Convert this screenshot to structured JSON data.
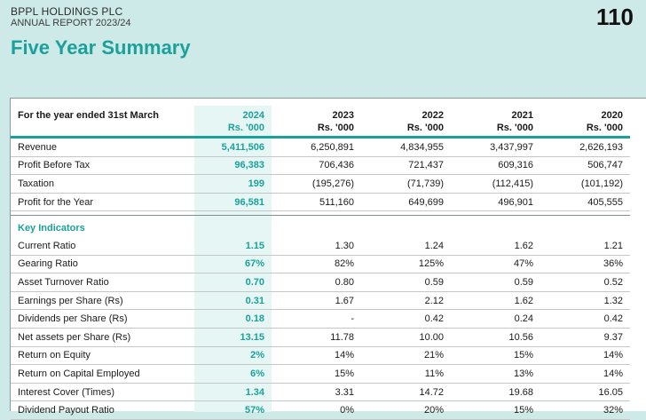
{
  "header": {
    "company": "BPPL HOLDINGS PLC",
    "report": "ANNUAL REPORT 2023/24",
    "page_number": "110",
    "title": "Five Year Summary"
  },
  "table": {
    "row_header": "For the year ended 31st March",
    "columns": [
      {
        "year": "2024",
        "unit": "Rs. '000"
      },
      {
        "year": "2023",
        "unit": "Rs. '000"
      },
      {
        "year": "2022",
        "unit": "Rs. '000"
      },
      {
        "year": "2021",
        "unit": "Rs. '000"
      },
      {
        "year": "2020",
        "unit": "Rs. '000"
      }
    ],
    "financials": [
      {
        "label": "Revenue",
        "values": [
          "5,411,506",
          "6,250,891",
          "4,834,955",
          "3,437,997",
          "2,626,193"
        ]
      },
      {
        "label": "Profit Before Tax",
        "values": [
          "96,383",
          "706,436",
          "721,437",
          "609,316",
          "506,747"
        ]
      },
      {
        "label": "Taxation",
        "values": [
          "199",
          "(195,276)",
          "(71,739)",
          "(112,415)",
          "(101,192)"
        ]
      },
      {
        "label": "Profit for the Year",
        "values": [
          "96,581",
          "511,160",
          "649,699",
          "496,901",
          "405,555"
        ]
      }
    ],
    "indicators_heading": "Key Indicators",
    "indicators": [
      {
        "label": "Current Ratio",
        "values": [
          "1.15",
          "1.30",
          "1.24",
          "1.62",
          "1.21"
        ]
      },
      {
        "label": "Gearing Ratio",
        "values": [
          "67%",
          "82%",
          "125%",
          "47%",
          "36%"
        ]
      },
      {
        "label": "Asset Turnover Ratio",
        "values": [
          "0.70",
          "0.80",
          "0.59",
          "0.59",
          "0.52"
        ]
      },
      {
        "label": "Earnings per Share (Rs)",
        "values": [
          "0.31",
          "1.67",
          "2.12",
          "1.62",
          "1.32"
        ]
      },
      {
        "label": "Dividends per Share (Rs)",
        "values": [
          "0.18",
          "-",
          "0.42",
          "0.24",
          "0.42"
        ]
      },
      {
        "label": "Net assets per Share (Rs)",
        "values": [
          "13.15",
          "11.78",
          "10.00",
          "10.56",
          "9.37"
        ]
      },
      {
        "label": "Return on Equity",
        "values": [
          "2%",
          "14%",
          "21%",
          "15%",
          "14%"
        ]
      },
      {
        "label": "Return on Capital Employed",
        "values": [
          "6%",
          "15%",
          "11%",
          "13%",
          "14%"
        ]
      },
      {
        "label": "Interest Cover (Times)",
        "values": [
          "1.34",
          "3.31",
          "14.72",
          "19.68",
          "16.05"
        ]
      },
      {
        "label": "Dividend Payout Ratio",
        "values": [
          "57%",
          "0%",
          "20%",
          "15%",
          "32%"
        ]
      }
    ]
  }
}
